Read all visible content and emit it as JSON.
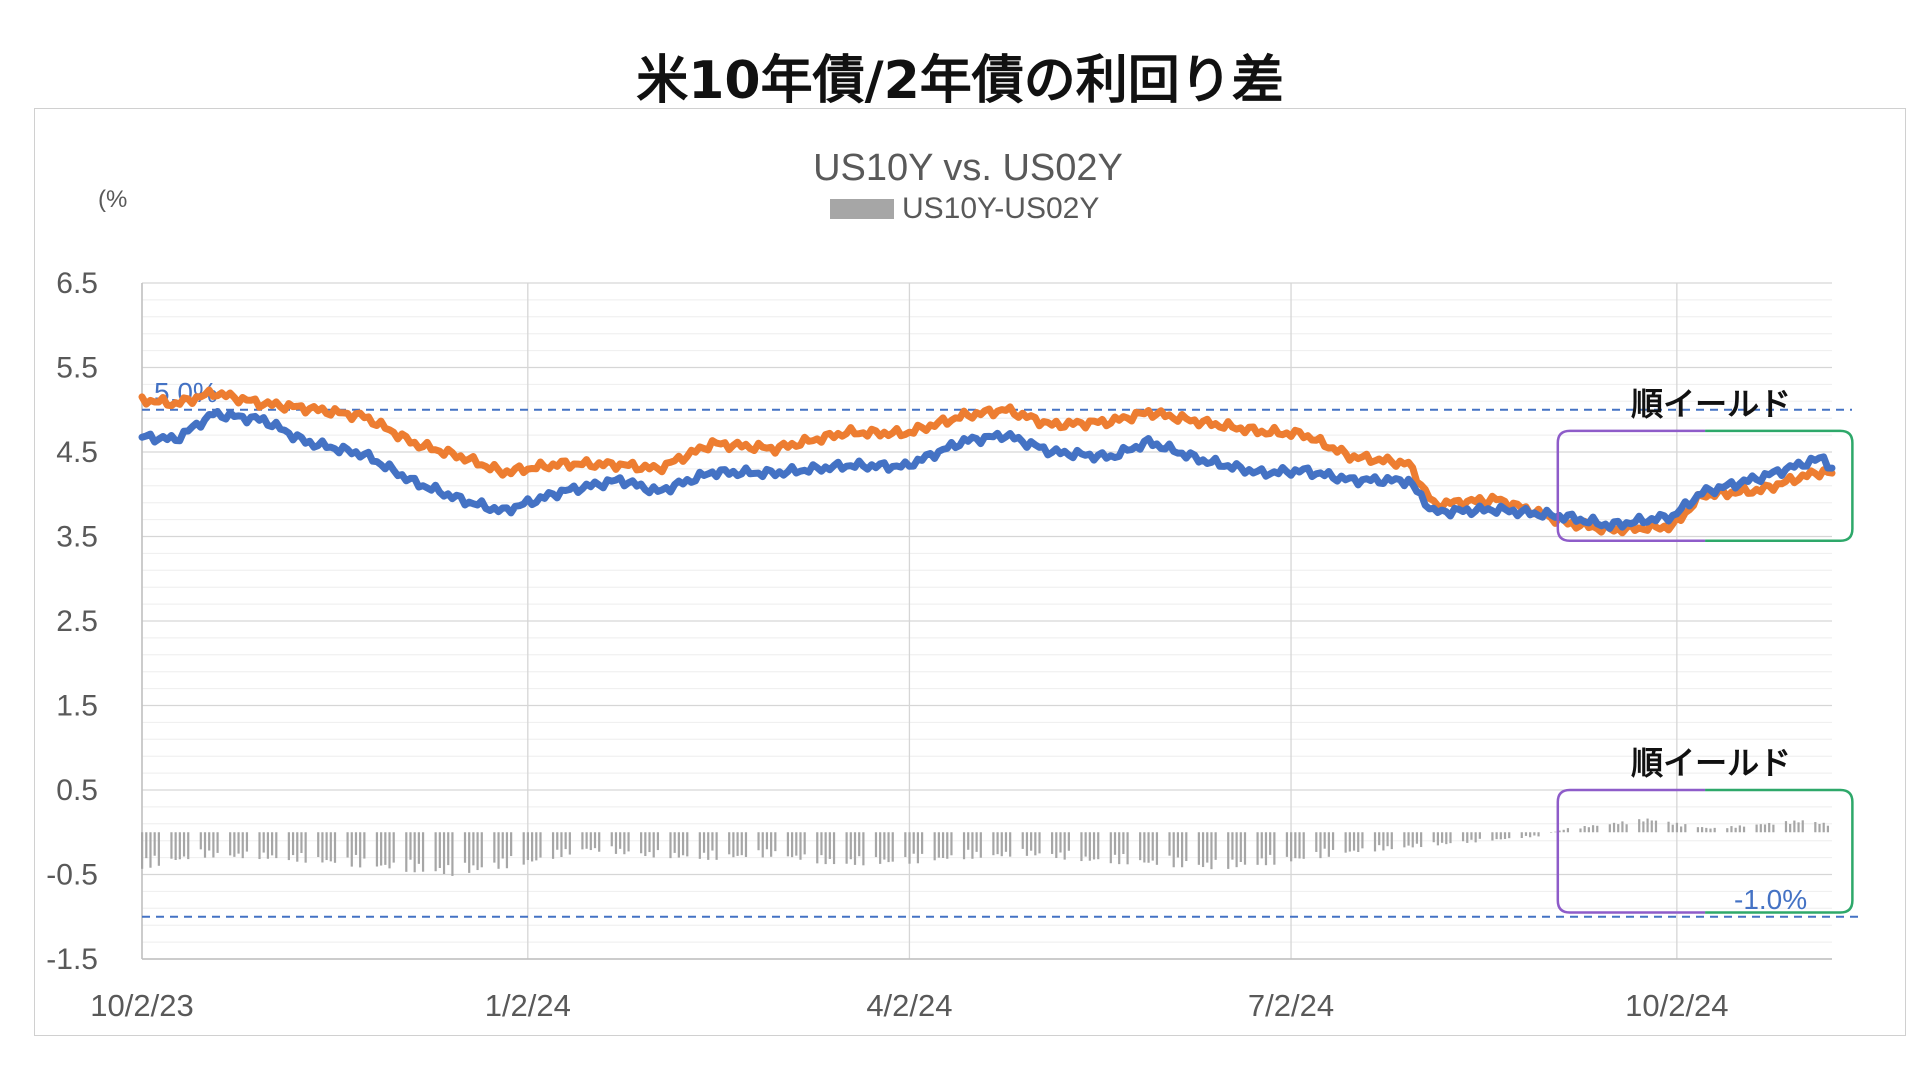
{
  "page_title": "米10年債/2年債の利回り差",
  "chart_data": {
    "type": "line",
    "title": "US10Y vs. US02Y",
    "unit_label": "(%",
    "ylim": [
      -1.5,
      6.5
    ],
    "yticks": [
      "6.5",
      "5.5",
      "4.5",
      "3.5",
      "2.5",
      "1.5",
      "0.5",
      "-0.5",
      "-1.5"
    ],
    "ytick_values": [
      6.5,
      5.5,
      4.5,
      3.5,
      2.5,
      1.5,
      0.5,
      -0.5,
      -1.5
    ],
    "x_range": [
      "2023-10-02",
      "2024-11-08"
    ],
    "xticks": [
      {
        "label": "10/2/23",
        "date": "2023-10-02"
      },
      {
        "label": "1/2/24",
        "date": "2024-01-02"
      },
      {
        "label": "4/2/24",
        "date": "2024-04-02"
      },
      {
        "label": "7/2/24",
        "date": "2024-07-02"
      },
      {
        "label": "10/2/24",
        "date": "2024-10-02"
      }
    ],
    "grid": true,
    "legend": {
      "position": "top",
      "entries": [
        {
          "name": "US10Y-US02Y",
          "color": "#a6a6a6"
        }
      ]
    },
    "series": [
      {
        "color": "#4472c4",
        "points": [
          [
            "2023-10-02",
            4.68
          ],
          [
            "2023-10-10",
            4.65
          ],
          [
            "2023-10-19",
            4.95
          ],
          [
            "2023-10-31",
            4.88
          ],
          [
            "2023-11-10",
            4.62
          ],
          [
            "2023-11-24",
            4.47
          ],
          [
            "2023-12-06",
            4.14
          ],
          [
            "2023-12-18",
            3.92
          ],
          [
            "2023-12-27",
            3.8
          ],
          [
            "2024-01-10",
            4.03
          ],
          [
            "2024-01-24",
            4.17
          ],
          [
            "2024-02-02",
            4.03
          ],
          [
            "2024-02-15",
            4.26
          ],
          [
            "2024-03-01",
            4.25
          ],
          [
            "2024-03-18",
            4.34
          ],
          [
            "2024-04-01",
            4.33
          ],
          [
            "2024-04-15",
            4.63
          ],
          [
            "2024-04-25",
            4.7
          ],
          [
            "2024-05-06",
            4.5
          ],
          [
            "2024-05-20",
            4.44
          ],
          [
            "2024-05-29",
            4.62
          ],
          [
            "2024-06-11",
            4.4
          ],
          [
            "2024-06-25",
            4.25
          ],
          [
            "2024-07-05",
            4.28
          ],
          [
            "2024-07-16",
            4.17
          ],
          [
            "2024-07-30",
            4.16
          ],
          [
            "2024-08-05",
            3.79
          ],
          [
            "2024-08-20",
            3.82
          ],
          [
            "2024-09-06",
            3.73
          ],
          [
            "2024-09-16",
            3.63
          ],
          [
            "2024-10-01",
            3.74
          ],
          [
            "2024-10-08",
            4.02
          ],
          [
            "2024-10-22",
            4.2
          ],
          [
            "2024-11-01",
            4.36
          ],
          [
            "2024-11-06",
            4.43
          ],
          [
            "2024-11-08",
            4.31
          ]
        ]
      },
      {
        "color": "#ed7d31",
        "points": [
          [
            "2023-10-02",
            5.12
          ],
          [
            "2023-10-10",
            5.07
          ],
          [
            "2023-10-19",
            5.2
          ],
          [
            "2023-10-31",
            5.07
          ],
          [
            "2023-11-10",
            5.02
          ],
          [
            "2023-11-24",
            4.92
          ],
          [
            "2023-12-06",
            4.6
          ],
          [
            "2023-12-18",
            4.43
          ],
          [
            "2023-12-27",
            4.26
          ],
          [
            "2024-01-10",
            4.36
          ],
          [
            "2024-01-24",
            4.35
          ],
          [
            "2024-02-02",
            4.3
          ],
          [
            "2024-02-15",
            4.6
          ],
          [
            "2024-03-01",
            4.54
          ],
          [
            "2024-03-18",
            4.73
          ],
          [
            "2024-04-01",
            4.72
          ],
          [
            "2024-04-15",
            4.93
          ],
          [
            "2024-04-25",
            5.0
          ],
          [
            "2024-05-06",
            4.82
          ],
          [
            "2024-05-20",
            4.86
          ],
          [
            "2024-05-29",
            4.97
          ],
          [
            "2024-06-11",
            4.85
          ],
          [
            "2024-06-25",
            4.74
          ],
          [
            "2024-07-05",
            4.71
          ],
          [
            "2024-07-16",
            4.45
          ],
          [
            "2024-07-30",
            4.36
          ],
          [
            "2024-08-05",
            3.88
          ],
          [
            "2024-08-20",
            3.94
          ],
          [
            "2024-09-06",
            3.66
          ],
          [
            "2024-09-16",
            3.58
          ],
          [
            "2024-10-01",
            3.62
          ],
          [
            "2024-10-08",
            3.99
          ],
          [
            "2024-10-22",
            4.05
          ],
          [
            "2024-11-01",
            4.21
          ],
          [
            "2024-11-06",
            4.27
          ],
          [
            "2024-11-08",
            4.25
          ]
        ]
      },
      {
        "name": "US10Y-US02Y",
        "type": "bar",
        "color": "#a6a6a6",
        "points": [
          [
            "2023-10-02",
            -0.44
          ],
          [
            "2023-10-16",
            -0.3
          ],
          [
            "2023-10-31",
            -0.32
          ],
          [
            "2023-11-15",
            -0.38
          ],
          [
            "2023-11-30",
            -0.45
          ],
          [
            "2023-12-15",
            -0.52
          ],
          [
            "2024-01-02",
            -0.39
          ],
          [
            "2024-01-16",
            -0.22
          ],
          [
            "2024-01-31",
            -0.3
          ],
          [
            "2024-02-15",
            -0.33
          ],
          [
            "2024-03-01",
            -0.29
          ],
          [
            "2024-03-15",
            -0.4
          ],
          [
            "2024-04-01",
            -0.38
          ],
          [
            "2024-04-15",
            -0.32
          ],
          [
            "2024-05-01",
            -0.28
          ],
          [
            "2024-05-15",
            -0.36
          ],
          [
            "2024-05-31",
            -0.4
          ],
          [
            "2024-06-14",
            -0.45
          ],
          [
            "2024-07-01",
            -0.37
          ],
          [
            "2024-07-15",
            -0.26
          ],
          [
            "2024-08-01",
            -0.18
          ],
          [
            "2024-08-15",
            -0.12
          ],
          [
            "2024-08-30",
            -0.05
          ],
          [
            "2024-09-06",
            0.05
          ],
          [
            "2024-09-16",
            0.11
          ],
          [
            "2024-09-25",
            0.17
          ],
          [
            "2024-10-01",
            0.12
          ],
          [
            "2024-10-10",
            0.05
          ],
          [
            "2024-10-21",
            0.1
          ],
          [
            "2024-11-01",
            0.15
          ],
          [
            "2024-11-08",
            0.1
          ]
        ]
      }
    ],
    "reference_lines": [
      {
        "y": 5.0,
        "label": "5.0%",
        "color": "#4472c4"
      },
      {
        "y": -1.0,
        "label": "-1.0%",
        "color": "#4472c4"
      }
    ],
    "annotations": [
      {
        "text": "順イールド",
        "x_from": "2024-09-06",
        "x_to": "2024-11-10",
        "y_from": 3.45,
        "y_to": 4.75
      },
      {
        "text": "順イールド",
        "x_from": "2024-09-06",
        "x_to": "2024-11-10",
        "y_from": -0.95,
        "y_to": 0.5
      }
    ]
  }
}
